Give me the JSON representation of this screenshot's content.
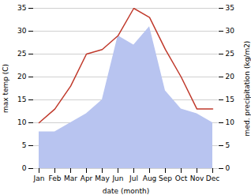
{
  "chart_data": {
    "type": "line",
    "categories": [
      "Jan",
      "Feb",
      "Mar",
      "Apr",
      "May",
      "Jun",
      "Jul",
      "Aug",
      "Sep",
      "Oct",
      "Nov",
      "Dec"
    ],
    "series": [
      {
        "type": "area",
        "color": "#b8c4f0",
        "values": [
          8,
          8,
          10,
          12,
          15,
          29,
          27,
          31,
          17,
          13,
          12,
          10
        ]
      },
      {
        "type": "line",
        "color": "#c0392b",
        "axis": "y2",
        "values": [
          10,
          13,
          18,
          25,
          26,
          29,
          35,
          33,
          26,
          20,
          13,
          13
        ]
      }
    ],
    "xlabel": "date (month)",
    "ylabel": "max temp (C)",
    "y2label": "med. precipitation (kg/m2)",
    "ylim": [
      0,
      35
    ],
    "yticks": [
      0,
      5,
      10,
      15,
      20,
      25,
      30,
      35
    ],
    "y2lim": [
      0,
      35
    ],
    "y2ticks": [
      0,
      5,
      10,
      15,
      20,
      25,
      30,
      35
    ],
    "grid": true
  }
}
